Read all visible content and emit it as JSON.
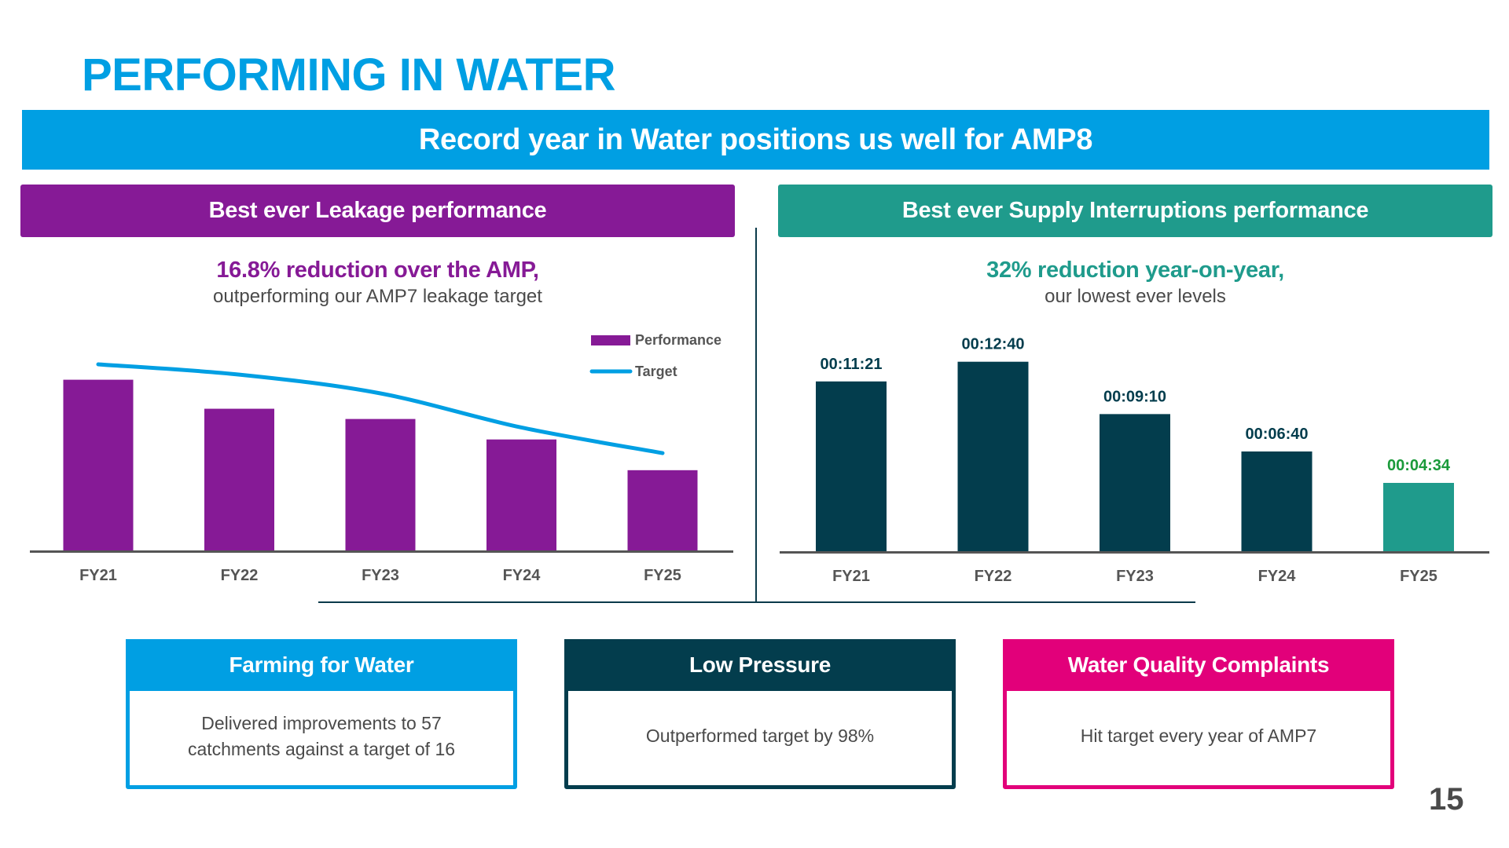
{
  "page": {
    "title": "PERFORMING IN WATER",
    "banner": "Record year in Water positions us well for AMP8",
    "page_number": "15"
  },
  "colors": {
    "brand_blue": "#009fe3",
    "leakage_purple": "#861a96",
    "supply_teal": "#1f9b8c",
    "dark_navy": "#033d4d",
    "magenta": "#e2007a",
    "highlight_green": "#1a9a3a",
    "axis_grey": "#555555"
  },
  "leakage_panel": {
    "header": "Best ever Leakage performance",
    "headline": "16.8% reduction over the AMP,",
    "subline": "outperforming our AMP7 leakage target"
  },
  "supply_panel": {
    "header": "Best ever Supply Interruptions performance",
    "headline": "32% reduction year-on-year,",
    "subline": "our lowest ever levels"
  },
  "cards": [
    {
      "title": "Farming for Water",
      "body": "Delivered improvements to 57 catchments against a target of 16"
    },
    {
      "title": "Low Pressure",
      "body": "Outperformed target by 98%"
    },
    {
      "title": "Water Quality Complaints",
      "body": "Hit target every year of AMP7"
    }
  ],
  "chart_data": [
    {
      "type": "bar",
      "title": "Best ever Leakage performance",
      "xlabel": "",
      "ylabel": "",
      "y_axis_shown": false,
      "note": "No y-axis values printed; values are relative indices estimated from bar heights (FY21 performance = 100)",
      "categories": [
        "FY21",
        "FY22",
        "FY23",
        "FY24",
        "FY25"
      ],
      "series": [
        {
          "name": "Performance",
          "kind": "bar",
          "color": "#861a96",
          "values": [
            100,
            83,
            77,
            65,
            47
          ]
        },
        {
          "name": "Target",
          "kind": "line",
          "color": "#009fe3",
          "values": [
            109,
            103,
            92,
            72,
            57
          ]
        }
      ],
      "ylim": [
        0,
        115
      ],
      "legend": "top-right",
      "grid": false
    },
    {
      "type": "bar",
      "title": "Best ever Supply Interruptions performance",
      "xlabel": "",
      "ylabel": "",
      "y_axis_shown": false,
      "categories": [
        "FY21",
        "FY22",
        "FY23",
        "FY24",
        "FY25"
      ],
      "series": [
        {
          "name": "Supply interruptions (hh:mm:ss)",
          "values_seconds": [
            681,
            760,
            550,
            400,
            274
          ],
          "labels": [
            "00:11:21",
            "00:12:40",
            "00:09:10",
            "00:06:40",
            "00:04:34"
          ],
          "bar_colors": [
            "#033d4d",
            "#033d4d",
            "#033d4d",
            "#033d4d",
            "#1f9b8c"
          ],
          "label_colors": [
            "#033d4d",
            "#033d4d",
            "#033d4d",
            "#033d4d",
            "#1a9a3a"
          ]
        }
      ],
      "ylim": [
        0,
        800
      ],
      "legend": "none",
      "grid": false
    }
  ]
}
